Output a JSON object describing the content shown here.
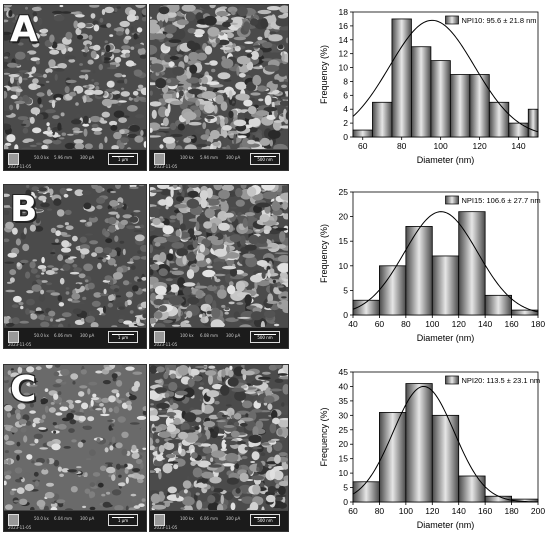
{
  "panels": [
    {
      "letter": "A",
      "sem_wide": {
        "meta": [
          "50.0 kx",
          "5.96 mm",
          "300 pA"
        ],
        "scale": "1 μm",
        "date": "2023-11-05"
      },
      "sem_zoom": {
        "meta": [
          "100 kx",
          "5.94 mm",
          "300 pA"
        ],
        "scale": "500 nm",
        "date": "2023-11-05"
      }
    },
    {
      "letter": "B",
      "sem_wide": {
        "meta": [
          "50.0 kx",
          "6.06 mm",
          "300 pA"
        ],
        "scale": "1 μm",
        "date": "2023-11-05"
      },
      "sem_zoom": {
        "meta": [
          "100 kx",
          "6.08 mm",
          "300 pA"
        ],
        "scale": "500 nm",
        "date": "2023-11-05"
      }
    },
    {
      "letter": "C",
      "sem_wide": {
        "meta": [
          "50.0 kx",
          "6.04 mm",
          "300 pA"
        ],
        "scale": "1 μm",
        "date": "2023-11-05"
      },
      "sem_zoom": {
        "meta": [
          "100 kx",
          "6.06 mm",
          "300 pA"
        ],
        "scale": "500 nm",
        "date": "2023-11-05"
      }
    }
  ],
  "colors": {
    "bar_fill_dark": "#4a4a4a",
    "bar_fill_light": "#e6e6e6",
    "curve": "#000000"
  },
  "chart_data": [
    {
      "type": "bar",
      "legend": "NPI10: 95.6 ± 21.8 nm",
      "xlabel": "Diameter (nm)",
      "ylabel": "Frequency (%)",
      "xlim": [
        55,
        150
      ],
      "ylim": [
        0,
        18
      ],
      "xticks": [
        60,
        80,
        100,
        120,
        140
      ],
      "yticks": [
        0,
        2,
        4,
        6,
        8,
        10,
        12,
        14,
        16,
        18
      ],
      "bin_edges": [
        55,
        65,
        75,
        85,
        95,
        105,
        115,
        125,
        135,
        145,
        150
      ],
      "values": [
        1,
        5,
        17,
        13,
        11,
        9,
        9,
        5,
        2,
        4
      ],
      "fit": {
        "mean": 95.6,
        "sd": 21.8,
        "peak": 16.8
      }
    },
    {
      "type": "bar",
      "legend": "NPI15: 106.6 ± 27.7 nm",
      "xlabel": "Diameter (nm)",
      "ylabel": "Frequency (%)",
      "xlim": [
        40,
        180
      ],
      "ylim": [
        0,
        25
      ],
      "xticks": [
        40,
        60,
        80,
        100,
        120,
        140,
        160,
        180
      ],
      "yticks": [
        0,
        5,
        10,
        15,
        20,
        25
      ],
      "bin_edges": [
        40,
        60,
        80,
        100,
        120,
        140,
        160,
        180
      ],
      "values": [
        3,
        10,
        18,
        12,
        21,
        4,
        1
      ],
      "fit": {
        "mean": 106.6,
        "sd": 27.7,
        "peak": 21
      }
    },
    {
      "type": "bar",
      "legend": "NPI20: 113.5 ± 23.1 nm",
      "xlabel": "Diameter (nm)",
      "ylabel": "Frequency (%)",
      "xlim": [
        60,
        200
      ],
      "ylim": [
        0,
        45
      ],
      "xticks": [
        60,
        80,
        100,
        120,
        140,
        160,
        180,
        200
      ],
      "yticks": [
        0,
        5,
        10,
        15,
        20,
        25,
        30,
        35,
        40,
        45
      ],
      "bin_edges": [
        60,
        80,
        100,
        120,
        140,
        160,
        180,
        200
      ],
      "values": [
        7,
        31,
        41,
        30,
        9,
        2,
        1
      ],
      "fit": {
        "mean": 113.5,
        "sd": 23.1,
        "peak": 40
      }
    }
  ]
}
